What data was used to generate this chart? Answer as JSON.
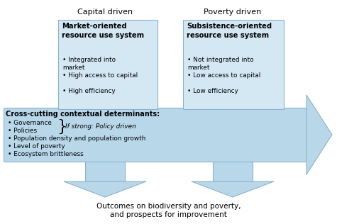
{
  "bg_color": "#ffffff",
  "arrow_color": "#b8d8ea",
  "arrow_edge_color": "#8ab4cc",
  "box_fill": "#d4e8f4",
  "box_edge": "#8ab4cc",
  "label_capital": "Capital driven",
  "label_poverty": "Poverty driven",
  "box1_title": "Market-oriented\nresource use system",
  "box1_bullets": [
    "Integrated into\nmarket",
    "High access to capital",
    "High efficiency"
  ],
  "box2_title": "Subsistence-oriented\nresource use system",
  "box2_bullets": [
    "Not integrated into\nmarket",
    "Low access to capital",
    "Low efficiency"
  ],
  "arrow_text_title": "Cross-cutting contextual determinants:",
  "arrow_bullets_left": [
    "Governance",
    "Policies"
  ],
  "arrow_brace_text": "If strong: Policy driven",
  "arrow_bullets_rest": [
    "Population density and population growth",
    "Level of poverty",
    "Ecosystem brittleness"
  ],
  "bottom_text1": "Outcomes on biodiversity and poverty,",
  "bottom_text2": "and prospects for improvement"
}
